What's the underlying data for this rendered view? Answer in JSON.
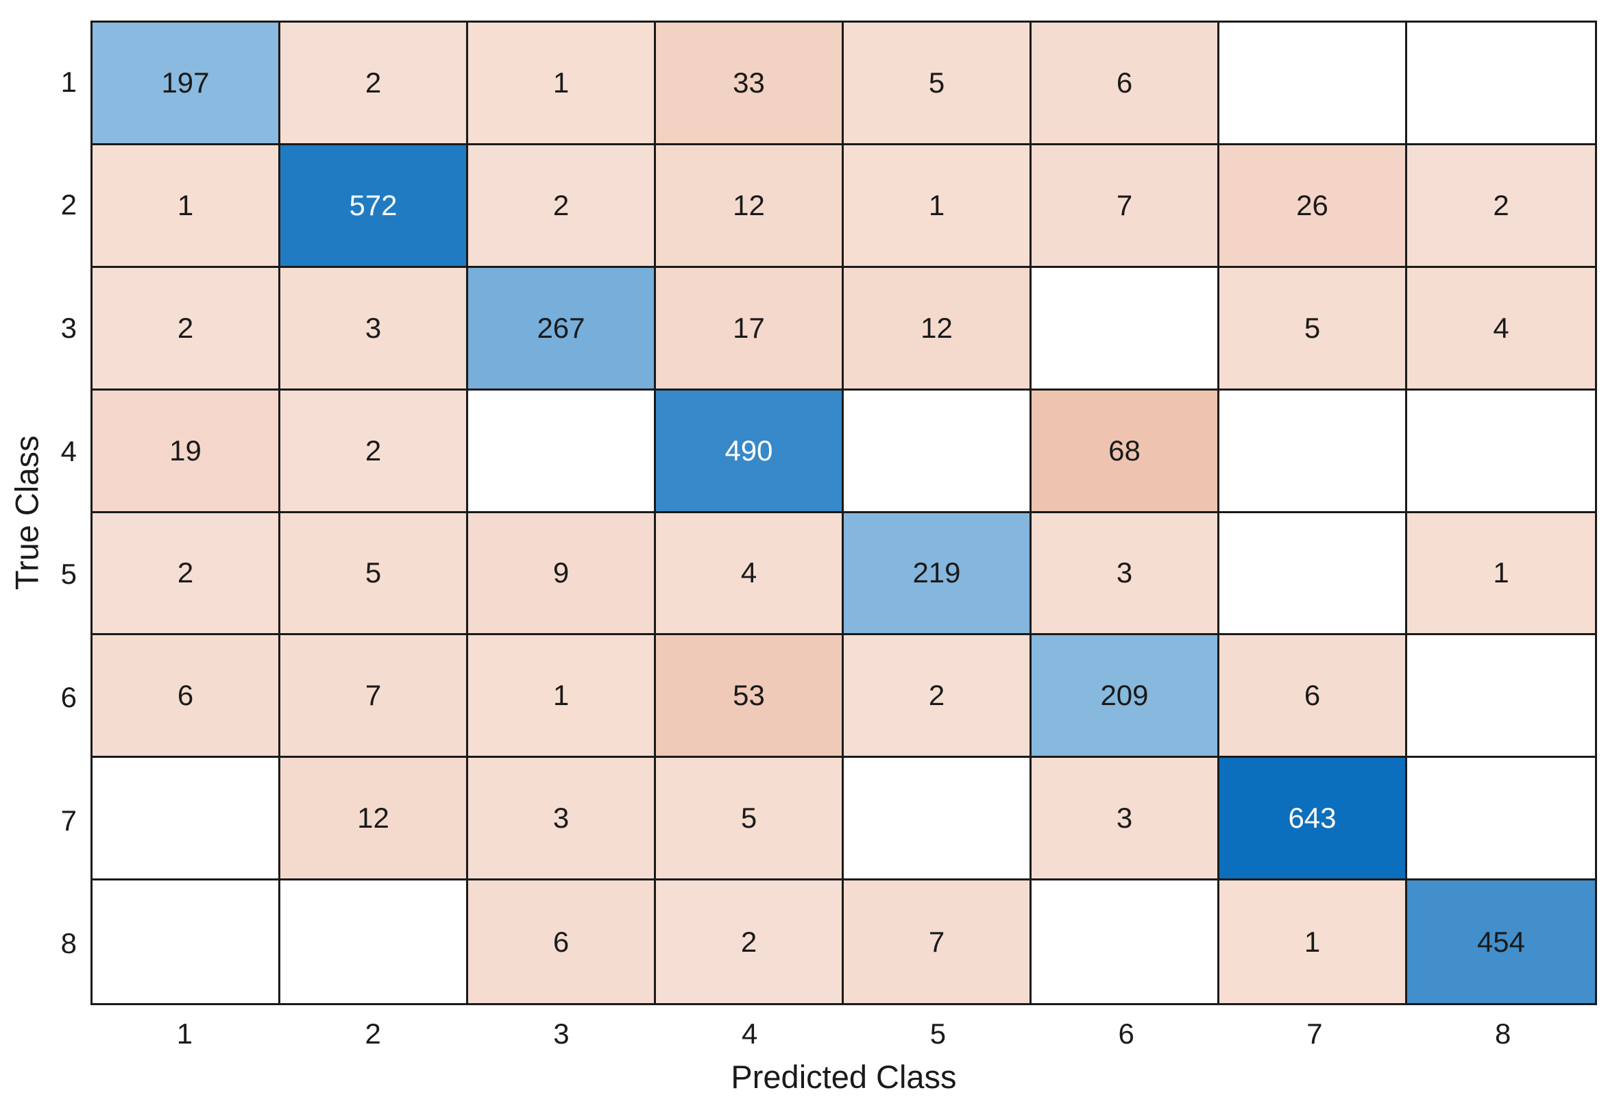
{
  "chart_data": {
    "type": "heatmap",
    "subtype": "confusion-matrix",
    "xlabel": "Predicted Class",
    "ylabel": "True Class",
    "x_tick_labels": [
      "1",
      "2",
      "3",
      "4",
      "5",
      "6",
      "7",
      "8"
    ],
    "y_tick_labels": [
      "1",
      "2",
      "3",
      "4",
      "5",
      "6",
      "7",
      "8"
    ],
    "matrix": [
      [
        197,
        2,
        1,
        33,
        5,
        6,
        null,
        null
      ],
      [
        1,
        572,
        2,
        12,
        1,
        7,
        26,
        2
      ],
      [
        2,
        3,
        267,
        17,
        12,
        null,
        5,
        4
      ],
      [
        19,
        2,
        null,
        490,
        null,
        68,
        null,
        null
      ],
      [
        2,
        5,
        9,
        4,
        219,
        3,
        null,
        1
      ],
      [
        6,
        7,
        1,
        53,
        2,
        209,
        6,
        null
      ],
      [
        null,
        12,
        3,
        5,
        null,
        3,
        643,
        null
      ],
      [
        null,
        null,
        6,
        2,
        7,
        null,
        1,
        454
      ]
    ],
    "grid_on": true,
    "legend": "none",
    "colors": {
      "diagonal_base": "#0C6FBD",
      "offdiag_base": "#EEC4B0",
      "empty_cell": "#FFFFFF",
      "grid_line": "#1A1A1A",
      "text_dark": "#1A1A1A",
      "text_light": "#FFFFFF"
    },
    "color_scale": {
      "diag_max": 643,
      "off_max": 68,
      "diag_min_frac": 0.25,
      "off_min_frac": 0.55,
      "white_text_threshold": 0.82
    }
  }
}
